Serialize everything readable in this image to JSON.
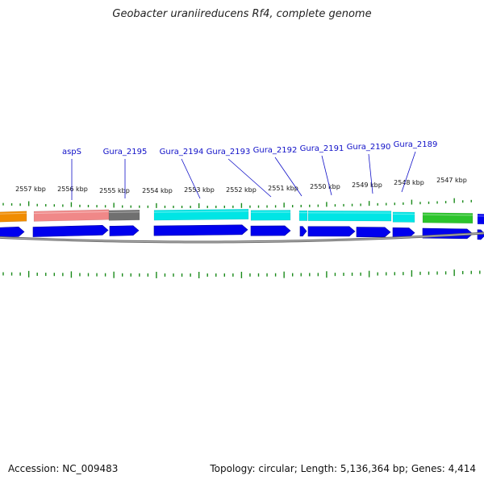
{
  "title": "Geobacter uraniireducens Rf4, complete genome",
  "footer": {
    "accession": "Accession: NC_009483",
    "topology": "Topology: circular; Length: 5,136,364 bp; Genes: 4,414"
  },
  "colors": {
    "backbone": "#8c8c8c",
    "cds": "#0000ee",
    "tick": "#1a8a1a",
    "label": "#1010c8"
  },
  "kbp_labels": [
    "2557 kbp",
    "2556 kbp",
    "2555 kbp",
    "2554 kbp",
    "2553 kbp",
    "2552 kbp",
    "2551 kbp",
    "2550 kbp",
    "2549 kbp",
    "2548 kbp",
    "2547 kbp"
  ],
  "gene_labels": [
    "aspS",
    "Gura_2195",
    "Gura_2194",
    "Gura_2193",
    "Gura_2192",
    "Gura_2191",
    "Gura_2190",
    "Gura_2189"
  ],
  "feature_colors": [
    "#f08c00",
    "#f08888",
    "#707070",
    "#00e5e5",
    "#00e5e5",
    "#00e5e5",
    "#00e5e5",
    "#00e5e5",
    "#2cc42c",
    "#0000ee"
  ]
}
